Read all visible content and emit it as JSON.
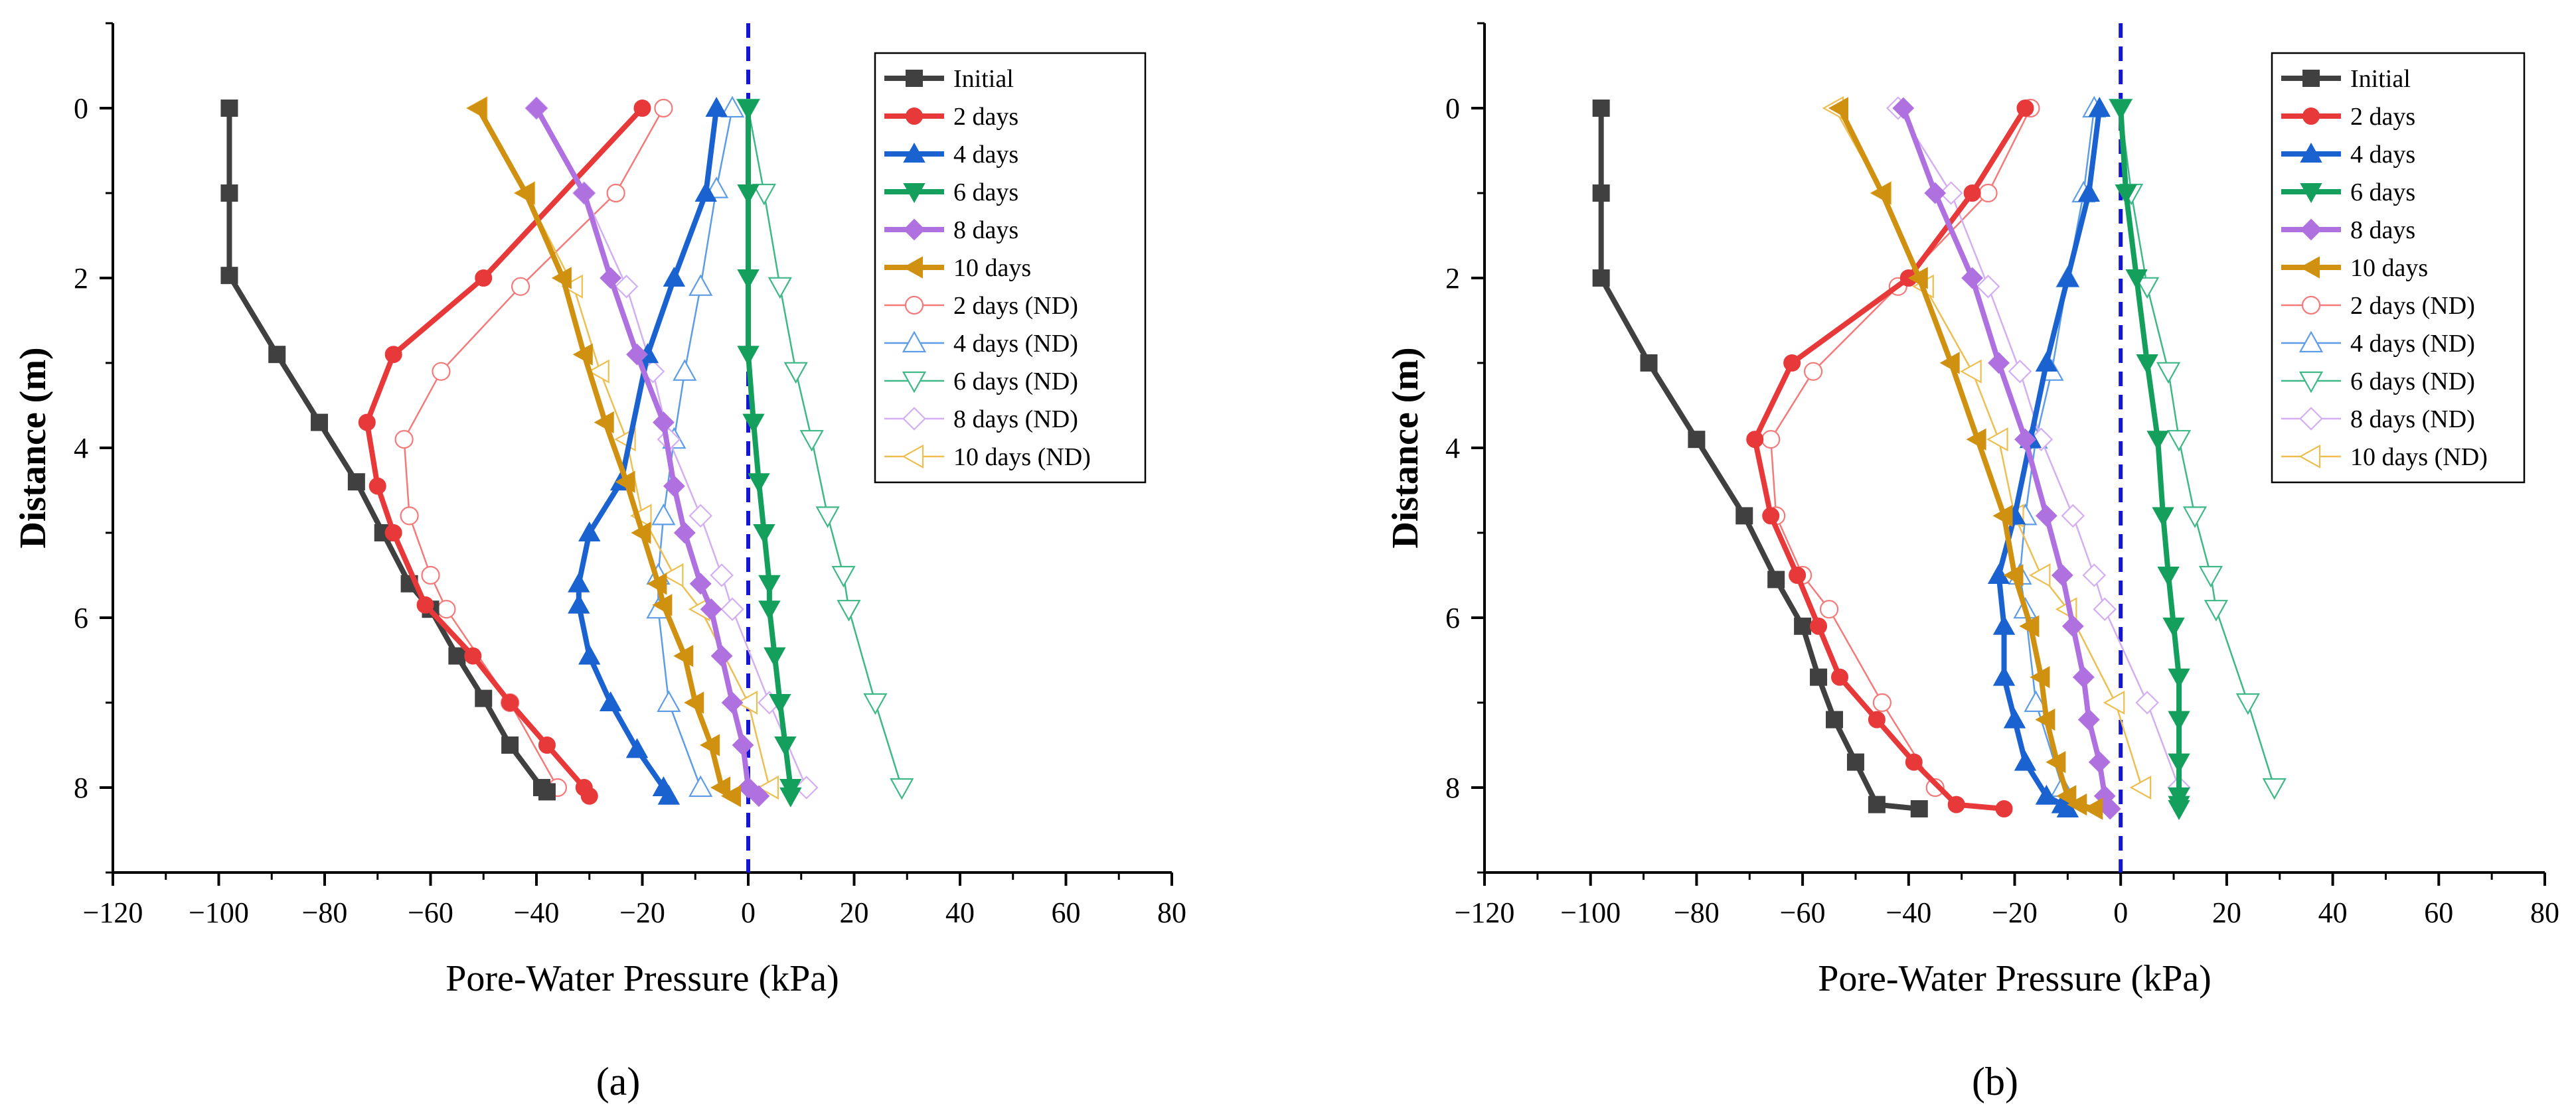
{
  "chart_data": [
    {
      "type": "line",
      "panel_label": "(a)",
      "xlabel": "Pore-Water Pressure (kPa)",
      "ylabel": "Distance (m)",
      "xlim": [
        -120,
        80
      ],
      "ylim": [
        9,
        -1
      ],
      "xticks": [
        -120,
        -100,
        -80,
        -60,
        -40,
        -20,
        0,
        20,
        40,
        60,
        80
      ],
      "yticks": [
        0,
        2,
        4,
        6,
        8
      ],
      "xtick_labels": [
        "−120",
        "−100",
        "−80",
        "−60",
        "−40",
        "−20",
        "0",
        "20",
        "40",
        "60",
        "80"
      ],
      "ytick_labels": [
        "0",
        "2",
        "4",
        "6",
        "8"
      ],
      "reference_line": {
        "x": 0,
        "color": "#1515d6"
      },
      "legend_position": "top-right",
      "series": [
        {
          "name": "Initial",
          "color": "#404040",
          "marker": "square",
          "filled": true,
          "x": [
            -98,
            -98,
            -98,
            -89,
            -81,
            -74,
            -69,
            -64,
            -60,
            -55,
            -50,
            -45,
            -39,
            -38
          ],
          "y": [
            0,
            1,
            1.97,
            2.9,
            3.7,
            4.4,
            5,
            5.6,
            5.9,
            6.45,
            6.95,
            7.5,
            8,
            8.05
          ]
        },
        {
          "name": "2 days",
          "color": "#e8393a",
          "marker": "circle",
          "filled": true,
          "x": [
            -20,
            -50,
            -67,
            -72,
            -70,
            -67,
            -61,
            -52,
            -45,
            -38,
            -31,
            -30
          ],
          "y": [
            0,
            2,
            2.9,
            3.7,
            4.45,
            5,
            5.85,
            6.45,
            7,
            7.5,
            8,
            8.1
          ]
        },
        {
          "name": "4 days",
          "color": "#1a62d0",
          "marker": "triangle-up",
          "filled": true,
          "x": [
            -6,
            -8,
            -14,
            -19,
            -24,
            -30,
            -32,
            -32,
            -30,
            -26,
            -21,
            -16,
            -15
          ],
          "y": [
            0,
            1,
            2,
            2.9,
            4.4,
            5,
            5.6,
            5.85,
            6.45,
            7,
            7.55,
            8,
            8.1
          ]
        },
        {
          "name": "6 days",
          "color": "#14a05c",
          "marker": "triangle-down",
          "filled": true,
          "x": [
            0,
            0,
            0,
            0,
            1,
            2,
            3,
            4,
            4,
            5,
            6,
            7,
            8,
            8
          ],
          "y": [
            0,
            1,
            2,
            2.9,
            3.7,
            4.4,
            5,
            5.6,
            5.9,
            6.45,
            7,
            7.5,
            8,
            8.1
          ]
        },
        {
          "name": "8 days",
          "color": "#b071e0",
          "marker": "diamond",
          "filled": true,
          "x": [
            -40,
            -31,
            -26,
            -21,
            -16,
            -14,
            -12,
            -9,
            -7,
            -5,
            -3,
            -1,
            0,
            2
          ],
          "y": [
            0,
            1,
            2,
            2.9,
            3.7,
            4.45,
            5,
            5.6,
            5.9,
            6.45,
            7,
            7.5,
            8,
            8.1
          ]
        },
        {
          "name": "10 days",
          "color": "#d09010",
          "marker": "triangle-left",
          "filled": true,
          "x": [
            -51,
            -42,
            -35,
            -31,
            -27,
            -23,
            -20,
            -17,
            -16,
            -12,
            -10,
            -7,
            -5,
            -3
          ],
          "y": [
            0,
            1,
            2,
            2.9,
            3.7,
            4.4,
            5,
            5.6,
            5.85,
            6.45,
            7,
            7.5,
            8,
            8.1
          ]
        },
        {
          "name": "2 days (ND)",
          "color": "#f47a7a",
          "marker": "circle",
          "filled": false,
          "x": [
            -16,
            -25,
            -43,
            -58,
            -65,
            -64,
            -60,
            -57,
            -45,
            -36
          ],
          "y": [
            0,
            1,
            2.1,
            3.1,
            3.9,
            4.8,
            5.5,
            5.9,
            7,
            8
          ]
        },
        {
          "name": "4 days (ND)",
          "color": "#5d9ce6",
          "marker": "triangle-up",
          "filled": false,
          "x": [
            -3,
            -6,
            -9,
            -12,
            -14,
            -16,
            -17,
            -17,
            -15,
            -9
          ],
          "y": [
            0,
            0.95,
            2.1,
            3.1,
            3.9,
            4.8,
            5.5,
            5.9,
            7,
            8
          ]
        },
        {
          "name": "6 days (ND)",
          "color": "#3db886",
          "marker": "triangle-down",
          "filled": false,
          "x": [
            0,
            3,
            6,
            9,
            12,
            15,
            18,
            19,
            24,
            29
          ],
          "y": [
            0,
            1,
            2.1,
            3.1,
            3.9,
            4.8,
            5.5,
            5.9,
            7,
            8
          ]
        },
        {
          "name": "8 days (ND)",
          "color": "#d4aef2",
          "marker": "diamond",
          "filled": false,
          "x": [
            -40,
            -31,
            -23,
            -18,
            -15,
            -9,
            -5,
            -3,
            4,
            11
          ],
          "y": [
            0,
            1,
            2.1,
            3.1,
            3.9,
            4.8,
            5.5,
            5.9,
            7,
            8
          ]
        },
        {
          "name": "10 days (ND)",
          "color": "#edbf52",
          "marker": "triangle-left",
          "filled": false,
          "x": [
            -51,
            -42,
            -33,
            -28,
            -23,
            -20,
            -14,
            -9,
            0,
            4
          ],
          "y": [
            0,
            1,
            2.1,
            3.1,
            3.9,
            4.8,
            5.5,
            5.9,
            7,
            8
          ]
        }
      ]
    },
    {
      "type": "line",
      "panel_label": "(b)",
      "xlabel": "Pore-Water Pressure (kPa)",
      "ylabel": "Distance (m)",
      "xlim": [
        -120,
        80
      ],
      "ylim": [
        9,
        -1
      ],
      "xticks": [
        -120,
        -100,
        -80,
        -60,
        -40,
        -20,
        0,
        20,
        40,
        60,
        80
      ],
      "yticks": [
        0,
        2,
        4,
        6,
        8
      ],
      "xtick_labels": [
        "−120",
        "−100",
        "−80",
        "−60",
        "−40",
        "−20",
        "0",
        "20",
        "40",
        "60",
        "80"
      ],
      "ytick_labels": [
        "0",
        "2",
        "4",
        "6",
        "8"
      ],
      "reference_line": {
        "x": 0,
        "color": "#1515d6"
      },
      "legend_position": "top-right",
      "series": [
        {
          "name": "Initial",
          "color": "#404040",
          "marker": "square",
          "filled": true,
          "x": [
            -98,
            -98,
            -98,
            -89,
            -80,
            -71,
            -65,
            -60,
            -57,
            -54,
            -50,
            -46,
            -38
          ],
          "y": [
            0,
            1,
            2,
            3,
            3.9,
            4.8,
            5.55,
            6.1,
            6.7,
            7.2,
            7.7,
            8.2,
            8.25
          ]
        },
        {
          "name": "2 days",
          "color": "#e8393a",
          "marker": "circle",
          "filled": true,
          "x": [
            -18,
            -28,
            -40,
            -62,
            -69,
            -66,
            -61,
            -57,
            -53,
            -46,
            -39,
            -31,
            -22
          ],
          "y": [
            0,
            1,
            2,
            3,
            3.9,
            4.8,
            5.5,
            6.1,
            6.7,
            7.2,
            7.7,
            8.2,
            8.25
          ]
        },
        {
          "name": "4 days",
          "color": "#1a62d0",
          "marker": "triangle-up",
          "filled": true,
          "x": [
            -4,
            -6,
            -10,
            -14,
            -17,
            -20,
            -23,
            -22,
            -22,
            -20,
            -18,
            -14,
            -11,
            -10
          ],
          "y": [
            0,
            1,
            2,
            3,
            3.9,
            4.8,
            5.5,
            6.1,
            6.7,
            7.2,
            7.7,
            8.1,
            8.2,
            8.25
          ]
        },
        {
          "name": "6 days",
          "color": "#14a05c",
          "marker": "triangle-down",
          "filled": true,
          "x": [
            0,
            1,
            3,
            5,
            7,
            8,
            9,
            10,
            11,
            11,
            11,
            11,
            11,
            11
          ],
          "y": [
            0,
            1,
            2,
            3,
            3.9,
            4.8,
            5.5,
            6.1,
            6.7,
            7.2,
            7.7,
            8.1,
            8.2,
            8.25
          ]
        },
        {
          "name": "8 days",
          "color": "#b071e0",
          "marker": "diamond",
          "filled": true,
          "x": [
            -41,
            -35,
            -28,
            -23,
            -18,
            -14,
            -11,
            -9,
            -7,
            -6,
            -4,
            -3,
            -2
          ],
          "y": [
            0,
            1,
            2,
            3,
            3.9,
            4.8,
            5.5,
            6.1,
            6.7,
            7.2,
            7.7,
            8.1,
            8.25
          ]
        },
        {
          "name": "10 days",
          "color": "#d09010",
          "marker": "triangle-left",
          "filled": true,
          "x": [
            -53,
            -45,
            -38,
            -32,
            -27,
            -22,
            -20,
            -17,
            -15,
            -14,
            -12,
            -10,
            -8,
            -5
          ],
          "y": [
            0,
            1,
            2,
            3,
            3.9,
            4.8,
            5.5,
            6.1,
            6.7,
            7.2,
            7.7,
            8.1,
            8.2,
            8.25
          ]
        },
        {
          "name": "2 days (ND)",
          "color": "#f47a7a",
          "marker": "circle",
          "filled": false,
          "x": [
            -17,
            -25,
            -42,
            -58,
            -66,
            -65,
            -60,
            -55,
            -45,
            -35
          ],
          "y": [
            0,
            1,
            2.1,
            3.1,
            3.9,
            4.8,
            5.5,
            5.9,
            7,
            8
          ]
        },
        {
          "name": "4 days (ND)",
          "color": "#5d9ce6",
          "marker": "triangle-up",
          "filled": false,
          "x": [
            -5,
            -7,
            -10,
            -13,
            -16,
            -18,
            -19,
            -18,
            -16,
            -11
          ],
          "y": [
            0,
            1,
            2,
            3.1,
            3.9,
            4.8,
            5.5,
            5.9,
            7,
            8
          ]
        },
        {
          "name": "6 days (ND)",
          "color": "#3db886",
          "marker": "triangle-down",
          "filled": false,
          "x": [
            0,
            2,
            5,
            9,
            11,
            14,
            17,
            18,
            24,
            29
          ],
          "y": [
            0,
            1,
            2.1,
            3.1,
            3.9,
            4.8,
            5.5,
            5.9,
            7,
            8
          ]
        },
        {
          "name": "8 days (ND)",
          "color": "#d4aef2",
          "marker": "diamond",
          "filled": false,
          "x": [
            -42,
            -32,
            -25,
            -19,
            -15,
            -9,
            -5,
            -3,
            5,
            11
          ],
          "y": [
            0,
            1,
            2.1,
            3.1,
            3.9,
            4.8,
            5.5,
            5.9,
            7,
            8
          ]
        },
        {
          "name": "10 days (ND)",
          "color": "#edbf52",
          "marker": "triangle-left",
          "filled": false,
          "x": [
            -54,
            -45,
            -37,
            -28,
            -23,
            -20,
            -15,
            -10,
            -1,
            4
          ],
          "y": [
            0,
            1,
            2.1,
            3.1,
            3.9,
            4.8,
            5.5,
            5.9,
            7,
            8
          ]
        }
      ]
    }
  ]
}
